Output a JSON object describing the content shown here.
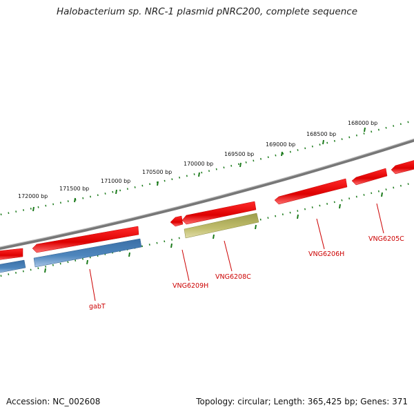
{
  "title": "Halobacterium sp. NRC-1 plasmid pNRC200, complete sequence",
  "footer": {
    "accession_label": "Accession:",
    "accession": "NC_002608",
    "topology_label": "Topology:",
    "topology": "circular",
    "length_label": "Length:",
    "length": "365,425 bp",
    "genes_label": "Genes:",
    "genes": "371"
  },
  "scale": {
    "unit": "bp",
    "ticks": [
      168000,
      168500,
      169000,
      169500,
      170000,
      170500,
      171000,
      171500,
      172000
    ]
  },
  "genes": [
    {
      "label": "VNG6205C",
      "strand": "forward",
      "color": "#dd0000"
    },
    {
      "label": "VNG6206H",
      "strand": "forward",
      "color": "#dd0000"
    },
    {
      "label": "VNG6208C",
      "strand": "reverse",
      "color": "#b8b86a"
    },
    {
      "label": "VNG6209H",
      "strand": "forward",
      "color": "#dd0000"
    },
    {
      "label": "gabT",
      "strand": "reverse",
      "color": "#4477aa"
    },
    {
      "label": "",
      "strand": "forward",
      "color": "#dd0000"
    },
    {
      "label": "",
      "strand": "reverse",
      "color": "#4477aa"
    }
  ],
  "colors": {
    "backbone": "#888888",
    "scale_ticks": "#1a7a1a",
    "gene_labels": "#cc0000",
    "forward_gene": "#dd0000",
    "reverse_gene": "#4477aa",
    "rna_gene": "#b8b86a"
  }
}
